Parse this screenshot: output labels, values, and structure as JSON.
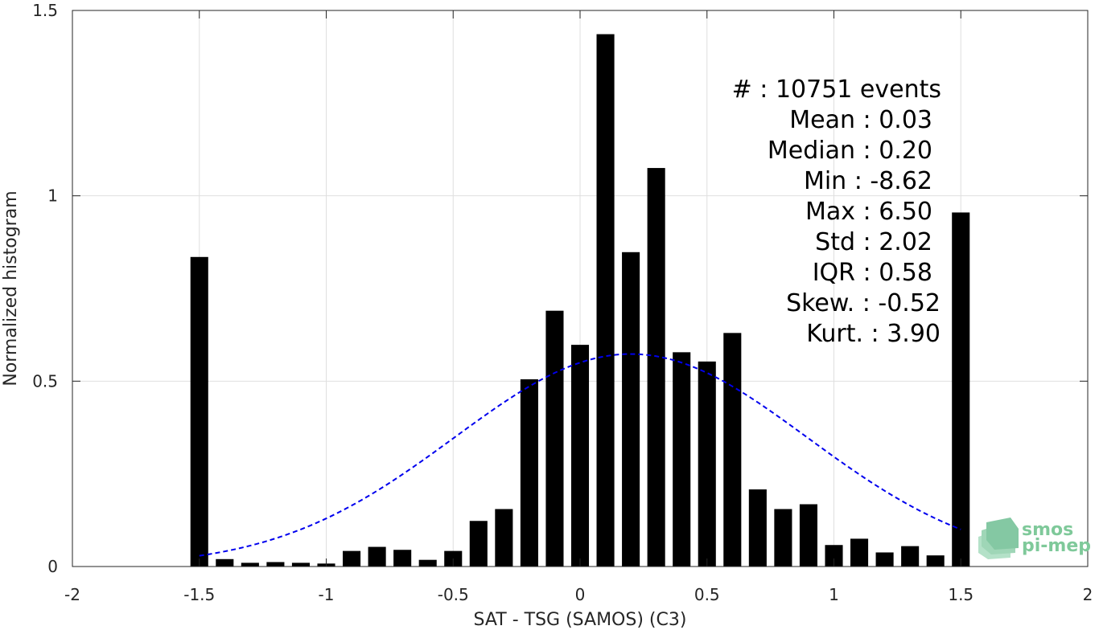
{
  "chart_data": {
    "type": "bar",
    "xlabel": "SAT - TSG (SAMOS) (C3)",
    "ylabel": "Normalized histogram",
    "xlim": [
      -2,
      2
    ],
    "ylim": [
      0,
      1.5
    ],
    "xticks": [
      -2,
      -1.5,
      -1,
      -0.5,
      0,
      0.5,
      1,
      1.5,
      2
    ],
    "xtick_labels": [
      "-2",
      "-1.5",
      "-1",
      "-0.5",
      "0",
      "0.5",
      "1",
      "1.5",
      "2"
    ],
    "yticks": [
      0,
      0.5,
      1,
      1.5
    ],
    "ytick_labels": [
      "0",
      "0.5",
      "1",
      "1.5"
    ],
    "grid": true,
    "bar_color": "#000000",
    "bin_width": 0.1,
    "x": [
      -1.5,
      -1.4,
      -1.3,
      -1.2,
      -1.1,
      -1.0,
      -0.9,
      -0.8,
      -0.7,
      -0.6,
      -0.5,
      -0.4,
      -0.3,
      -0.2,
      -0.1,
      0.0,
      0.1,
      0.2,
      0.3,
      0.4,
      0.5,
      0.6,
      0.7,
      0.8,
      0.9,
      1.0,
      1.1,
      1.2,
      1.3,
      1.4,
      1.5
    ],
    "values": [
      0.835,
      0.02,
      0.01,
      0.012,
      0.01,
      0.008,
      0.042,
      0.053,
      0.045,
      0.018,
      0.042,
      0.123,
      0.155,
      0.505,
      0.69,
      0.598,
      1.436,
      0.848,
      1.075,
      0.578,
      0.553,
      0.63,
      0.208,
      0.155,
      0.168,
      0.058,
      0.075,
      0.038,
      0.055,
      0.03,
      0.955
    ],
    "fit_curve": {
      "type": "normal",
      "style": "dashed",
      "color": "#0000ee",
      "x_range": [
        -1.5,
        1.5
      ],
      "mean": 0.2,
      "sigma": 0.696
    },
    "annotations": [
      "#  : 10751 events",
      "Mean : 0.03",
      "Median : 0.20",
      "Min : -8.62",
      "Max : 6.50",
      "Std : 2.02",
      "IQR : 0.58",
      "Skew. : -0.52",
      "Kurt. : 3.90"
    ]
  },
  "logo": {
    "line1": "smos",
    "line2": "pi-mep",
    "color": "#7fc99a"
  }
}
